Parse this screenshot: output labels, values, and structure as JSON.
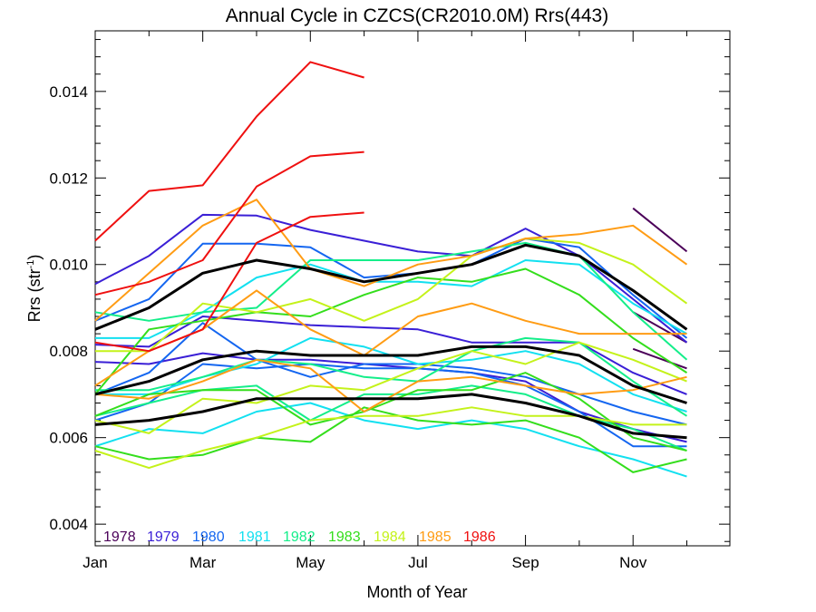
{
  "chart_data": {
    "type": "line",
    "title": "Annual Cycle in CZCS(CR2010.0M) Rrs(443)",
    "xlabel": "Month of Year",
    "ylabel": "Rrs (str",
    "ylabel_sup": "-1",
    "ylabel_close": ")",
    "xlim": [
      1,
      12.8
    ],
    "ylim": [
      0.0035,
      0.0154
    ],
    "x_ticks": [
      {
        "value": 1,
        "label": "Jan"
      },
      {
        "value": 3,
        "label": "Mar"
      },
      {
        "value": 5,
        "label": "May"
      },
      {
        "value": 7,
        "label": "Jul"
      },
      {
        "value": 9,
        "label": "Sep"
      },
      {
        "value": 11,
        "label": "Nov"
      }
    ],
    "y_ticks": [
      {
        "value": 0.004,
        "label": "0.004"
      },
      {
        "value": 0.006,
        "label": "0.006"
      },
      {
        "value": 0.008,
        "label": "0.008"
      },
      {
        "value": 0.01,
        "label": "0.010"
      },
      {
        "value": 0.012,
        "label": "0.012"
      },
      {
        "value": 0.014,
        "label": "0.014"
      }
    ],
    "legend_position": "bottom-left",
    "legend": [
      {
        "label": "1978",
        "color": "#4b0059"
      },
      {
        "label": "1979",
        "color": "#3a1fd6"
      },
      {
        "label": "1980",
        "color": "#1466f0"
      },
      {
        "label": "1981",
        "color": "#12e0f0"
      },
      {
        "label": "1982",
        "color": "#14ee8a"
      },
      {
        "label": "1983",
        "color": "#34de1c"
      },
      {
        "label": "1984",
        "color": "#c4f21a"
      },
      {
        "label": "1985",
        "color": "#ff9c14"
      },
      {
        "label": "1986",
        "color": "#ef1010"
      }
    ],
    "series": [
      {
        "color": "#4b0059",
        "x": [
          11,
          12
        ],
        "y": [
          0.0113,
          0.0103
        ]
      },
      {
        "color": "#4b0059",
        "x": [
          11,
          12
        ],
        "y": [
          0.0089,
          0.0082
        ]
      },
      {
        "color": "#4b0059",
        "x": [
          11,
          12
        ],
        "y": [
          0.00805,
          0.0076
        ]
      },
      {
        "color": "#3a1fd6",
        "x": [
          1,
          2,
          3,
          4,
          5,
          6,
          7,
          8,
          9,
          10,
          11,
          12
        ],
        "y": [
          0.00955,
          0.0102,
          0.01115,
          0.01113,
          0.0108,
          0.01055,
          0.0103,
          0.0102,
          0.01083,
          0.0102,
          0.0092,
          0.0082
        ]
      },
      {
        "color": "#3a1fd6",
        "x": [
          1,
          2,
          3,
          4,
          5,
          6,
          7,
          8,
          9,
          10,
          11,
          12
        ],
        "y": [
          0.00815,
          0.0081,
          0.0088,
          0.0087,
          0.0086,
          0.00855,
          0.0085,
          0.0082,
          0.0082,
          0.0082,
          0.0075,
          0.007
        ]
      },
      {
        "color": "#3a1fd6",
        "x": [
          1,
          2,
          3,
          4,
          5,
          6,
          7,
          8,
          9,
          10,
          11,
          12
        ],
        "y": [
          0.00775,
          0.0077,
          0.00795,
          0.0078,
          0.0078,
          0.0077,
          0.0076,
          0.0075,
          0.0073,
          0.0066,
          0.0062,
          0.0059
        ]
      },
      {
        "color": "#1466f0",
        "x": [
          1,
          2,
          3,
          4,
          5,
          6,
          7,
          8,
          9,
          10,
          11,
          12
        ],
        "y": [
          0.0087,
          0.0092,
          0.01048,
          0.01048,
          0.0104,
          0.0097,
          0.0098,
          0.01,
          0.0106,
          0.0104,
          0.0093,
          0.0083
        ]
      },
      {
        "color": "#1466f0",
        "x": [
          1,
          2,
          3,
          4,
          5,
          6,
          7,
          8,
          9,
          10,
          11,
          12
        ],
        "y": [
          0.007,
          0.0075,
          0.00865,
          0.0078,
          0.0074,
          0.0077,
          0.0077,
          0.0076,
          0.0074,
          0.007,
          0.0066,
          0.0063
        ]
      },
      {
        "color": "#1466f0",
        "x": [
          1,
          2,
          3,
          4,
          5,
          6,
          7,
          8,
          9,
          10,
          11,
          12
        ],
        "y": [
          0.0064,
          0.0068,
          0.0077,
          0.0076,
          0.0077,
          0.0076,
          0.0076,
          0.0075,
          0.0072,
          0.0066,
          0.0058,
          0.0058
        ]
      },
      {
        "color": "#12e0f0",
        "x": [
          1,
          2,
          3,
          4,
          5,
          6,
          7,
          8,
          9,
          10,
          11,
          12
        ],
        "y": [
          0.0083,
          0.0083,
          0.0089,
          0.0097,
          0.01,
          0.0096,
          0.0096,
          0.0095,
          0.0101,
          0.01,
          0.0091,
          0.0084
        ]
      },
      {
        "color": "#12e0f0",
        "x": [
          1,
          2,
          3,
          4,
          5,
          6,
          7,
          8,
          9,
          10,
          11,
          12
        ],
        "y": [
          0.007,
          0.007,
          0.0074,
          0.0077,
          0.0083,
          0.0081,
          0.0077,
          0.0078,
          0.008,
          0.0077,
          0.007,
          0.0066
        ]
      },
      {
        "color": "#12e0f0",
        "x": [
          1,
          2,
          3,
          4,
          5,
          6,
          7,
          8,
          9,
          10,
          11,
          12
        ],
        "y": [
          0.0058,
          0.0062,
          0.0061,
          0.0066,
          0.0068,
          0.0064,
          0.0062,
          0.0064,
          0.0062,
          0.0058,
          0.0055,
          0.0051
        ]
      },
      {
        "color": "#14ee8a",
        "x": [
          1,
          2,
          3,
          4,
          5,
          6,
          7,
          8,
          9,
          10,
          11,
          12
        ],
        "y": [
          0.0089,
          0.0087,
          0.0089,
          0.009,
          0.0101,
          0.0101,
          0.0101,
          0.0103,
          0.0105,
          0.0102,
          0.0089,
          0.0078
        ]
      },
      {
        "color": "#14ee8a",
        "x": [
          1,
          2,
          3,
          4,
          5,
          6,
          7,
          8,
          9,
          10,
          11,
          12
        ],
        "y": [
          0.0071,
          0.0071,
          0.0074,
          0.0078,
          0.0077,
          0.0074,
          0.0073,
          0.008,
          0.0083,
          0.0082,
          0.0073,
          0.0065
        ]
      },
      {
        "color": "#14ee8a",
        "x": [
          1,
          2,
          3,
          4,
          5,
          6,
          7,
          8,
          9,
          10,
          11,
          12
        ],
        "y": [
          0.0065,
          0.0068,
          0.0071,
          0.0072,
          0.0064,
          0.007,
          0.007,
          0.0072,
          0.007,
          0.0065,
          0.0062,
          0.0057
        ]
      },
      {
        "color": "#34de1c",
        "x": [
          1,
          2,
          3,
          4,
          5,
          6,
          7,
          8,
          9,
          10,
          11,
          12
        ],
        "y": [
          0.007,
          0.0085,
          0.0087,
          0.0089,
          0.0088,
          0.0093,
          0.0097,
          0.0096,
          0.0099,
          0.0093,
          0.0083,
          0.0075
        ]
      },
      {
        "color": "#34de1c",
        "x": [
          1,
          2,
          3,
          4,
          5,
          6,
          7,
          8,
          9,
          10,
          11,
          12
        ],
        "y": [
          0.0065,
          0.007,
          0.0071,
          0.0071,
          0.0063,
          0.0066,
          0.0071,
          0.0071,
          0.0075,
          0.0069,
          0.006,
          0.0057
        ]
      },
      {
        "color": "#34de1c",
        "x": [
          1,
          2,
          3,
          4,
          5,
          6,
          7,
          8,
          9,
          10,
          11,
          12
        ],
        "y": [
          0.0058,
          0.0055,
          0.0056,
          0.006,
          0.0059,
          0.0067,
          0.0064,
          0.0063,
          0.0064,
          0.006,
          0.0052,
          0.0055
        ]
      },
      {
        "color": "#c4f21a",
        "x": [
          1,
          2,
          3,
          4,
          5,
          6,
          7,
          8,
          9,
          10,
          11,
          12
        ],
        "y": [
          0.008,
          0.008,
          0.0091,
          0.0089,
          0.0092,
          0.0087,
          0.0092,
          0.0102,
          0.0106,
          0.0105,
          0.01,
          0.0091
        ]
      },
      {
        "color": "#c4f21a",
        "x": [
          1,
          2,
          3,
          4,
          5,
          6,
          7,
          8,
          9,
          10,
          11,
          12
        ],
        "y": [
          0.0064,
          0.0061,
          0.0069,
          0.0068,
          0.0072,
          0.0071,
          0.0076,
          0.008,
          0.0077,
          0.0082,
          0.0078,
          0.0073
        ]
      },
      {
        "color": "#c4f21a",
        "x": [
          1,
          2,
          3,
          4,
          5,
          6,
          7,
          8,
          9,
          10,
          11,
          12
        ],
        "y": [
          0.0057,
          0.0053,
          0.0057,
          0.006,
          0.0064,
          0.0065,
          0.0065,
          0.0067,
          0.0065,
          0.0065,
          0.0063,
          0.0063
        ]
      },
      {
        "color": "#ff9c14",
        "x": [
          1,
          2,
          3,
          4,
          5,
          6,
          7,
          8,
          9,
          10,
          11,
          12
        ],
        "y": [
          0.0087,
          0.0098,
          0.0109,
          0.0115,
          0.0099,
          0.0095,
          0.01,
          0.0102,
          0.0106,
          0.0107,
          0.0109,
          0.01
        ]
      },
      {
        "color": "#ff9c14",
        "x": [
          1,
          2,
          3,
          4,
          5,
          6,
          7,
          8,
          9,
          10,
          11,
          12
        ],
        "y": [
          0.0072,
          0.008,
          0.0085,
          0.0094,
          0.0085,
          0.0079,
          0.0088,
          0.0091,
          0.0087,
          0.0084,
          0.0084,
          0.0084
        ]
      },
      {
        "color": "#ff9c14",
        "x": [
          1,
          2,
          3,
          4,
          5,
          6,
          7,
          8,
          9,
          10,
          11,
          12
        ],
        "y": [
          0.007,
          0.0069,
          0.0073,
          0.0078,
          0.0076,
          0.0066,
          0.0073,
          0.0074,
          0.0072,
          0.007,
          0.0071,
          0.0074
        ]
      },
      {
        "color": "#ef1010",
        "x": [
          1,
          2,
          3,
          4,
          5,
          6
        ],
        "y": [
          0.01055,
          0.0117,
          0.01183,
          0.01342,
          0.01468,
          0.01432
        ]
      },
      {
        "color": "#ef1010",
        "x": [
          1,
          2,
          3,
          4,
          5,
          6
        ],
        "y": [
          0.0093,
          0.0096,
          0.0101,
          0.0118,
          0.0125,
          0.0126
        ]
      },
      {
        "color": "#ef1010",
        "x": [
          1,
          2,
          3,
          4,
          5,
          6
        ],
        "y": [
          0.0082,
          0.008,
          0.0085,
          0.0105,
          0.0111,
          0.0112
        ]
      },
      {
        "color": "#000000",
        "width": 3,
        "x": [
          1,
          2,
          3,
          4,
          5,
          6,
          7,
          8,
          9,
          10,
          11,
          12
        ],
        "y": [
          0.0085,
          0.009,
          0.0098,
          0.0101,
          0.0099,
          0.0096,
          0.0098,
          0.01,
          0.01045,
          0.0102,
          0.0094,
          0.0085
        ]
      },
      {
        "color": "#000000",
        "width": 3,
        "x": [
          1,
          2,
          3,
          4,
          5,
          6,
          7,
          8,
          9,
          10,
          11,
          12
        ],
        "y": [
          0.007,
          0.0073,
          0.0078,
          0.008,
          0.0079,
          0.0079,
          0.0079,
          0.0081,
          0.0081,
          0.0079,
          0.0072,
          0.0068
        ]
      },
      {
        "color": "#000000",
        "width": 3,
        "x": [
          1,
          2,
          3,
          4,
          5,
          6,
          7,
          8,
          9,
          10,
          11,
          12
        ],
        "y": [
          0.0063,
          0.0064,
          0.0066,
          0.0069,
          0.0069,
          0.0069,
          0.0069,
          0.007,
          0.0068,
          0.0065,
          0.0061,
          0.006
        ]
      }
    ]
  }
}
